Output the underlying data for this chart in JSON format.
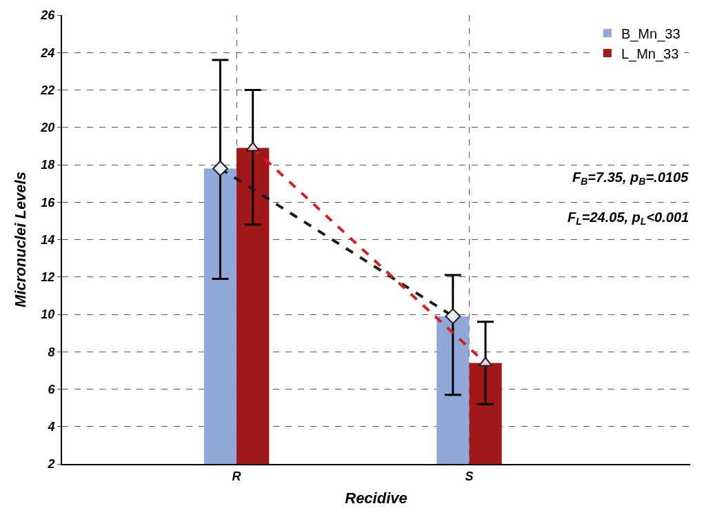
{
  "chart_data": {
    "type": "bar",
    "xlabel": "Recidive",
    "ylabel": "Micronuclei Levels",
    "categories": [
      "R",
      "S"
    ],
    "series": [
      {
        "name": "B_Mn_33",
        "color": "#8fa8d8",
        "values": [
          17.8,
          9.9
        ],
        "errors": [
          [
            11.9,
            23.6
          ],
          [
            5.7,
            12.1
          ]
        ]
      },
      {
        "name": "L_Mn_33",
        "color": "#a01818",
        "values": [
          18.9,
          7.4
        ],
        "errors": [
          [
            14.8,
            22.0
          ],
          [
            5.2,
            9.6
          ]
        ]
      },
      {
        "type": "line",
        "color": "#1a1a1a",
        "values": [
          17.8,
          9.9
        ],
        "marker": "diamond",
        "line_style": "dashed"
      },
      {
        "type": "line",
        "color": "#d42020",
        "values": [
          18.9,
          7.4
        ],
        "marker": "triangle",
        "line_style": "dashed"
      }
    ],
    "ylim": [
      2,
      26
    ],
    "yticks": [
      2,
      4,
      6,
      8,
      10,
      12,
      14,
      16,
      18,
      20,
      22,
      24,
      26
    ],
    "annotations": [
      "F$_{B}$=7.35, p$_{B}$=.0105",
      "F$_{L}$=24.05, p$_{L}$<0.001"
    ],
    "grid": true,
    "legend": "top right"
  }
}
